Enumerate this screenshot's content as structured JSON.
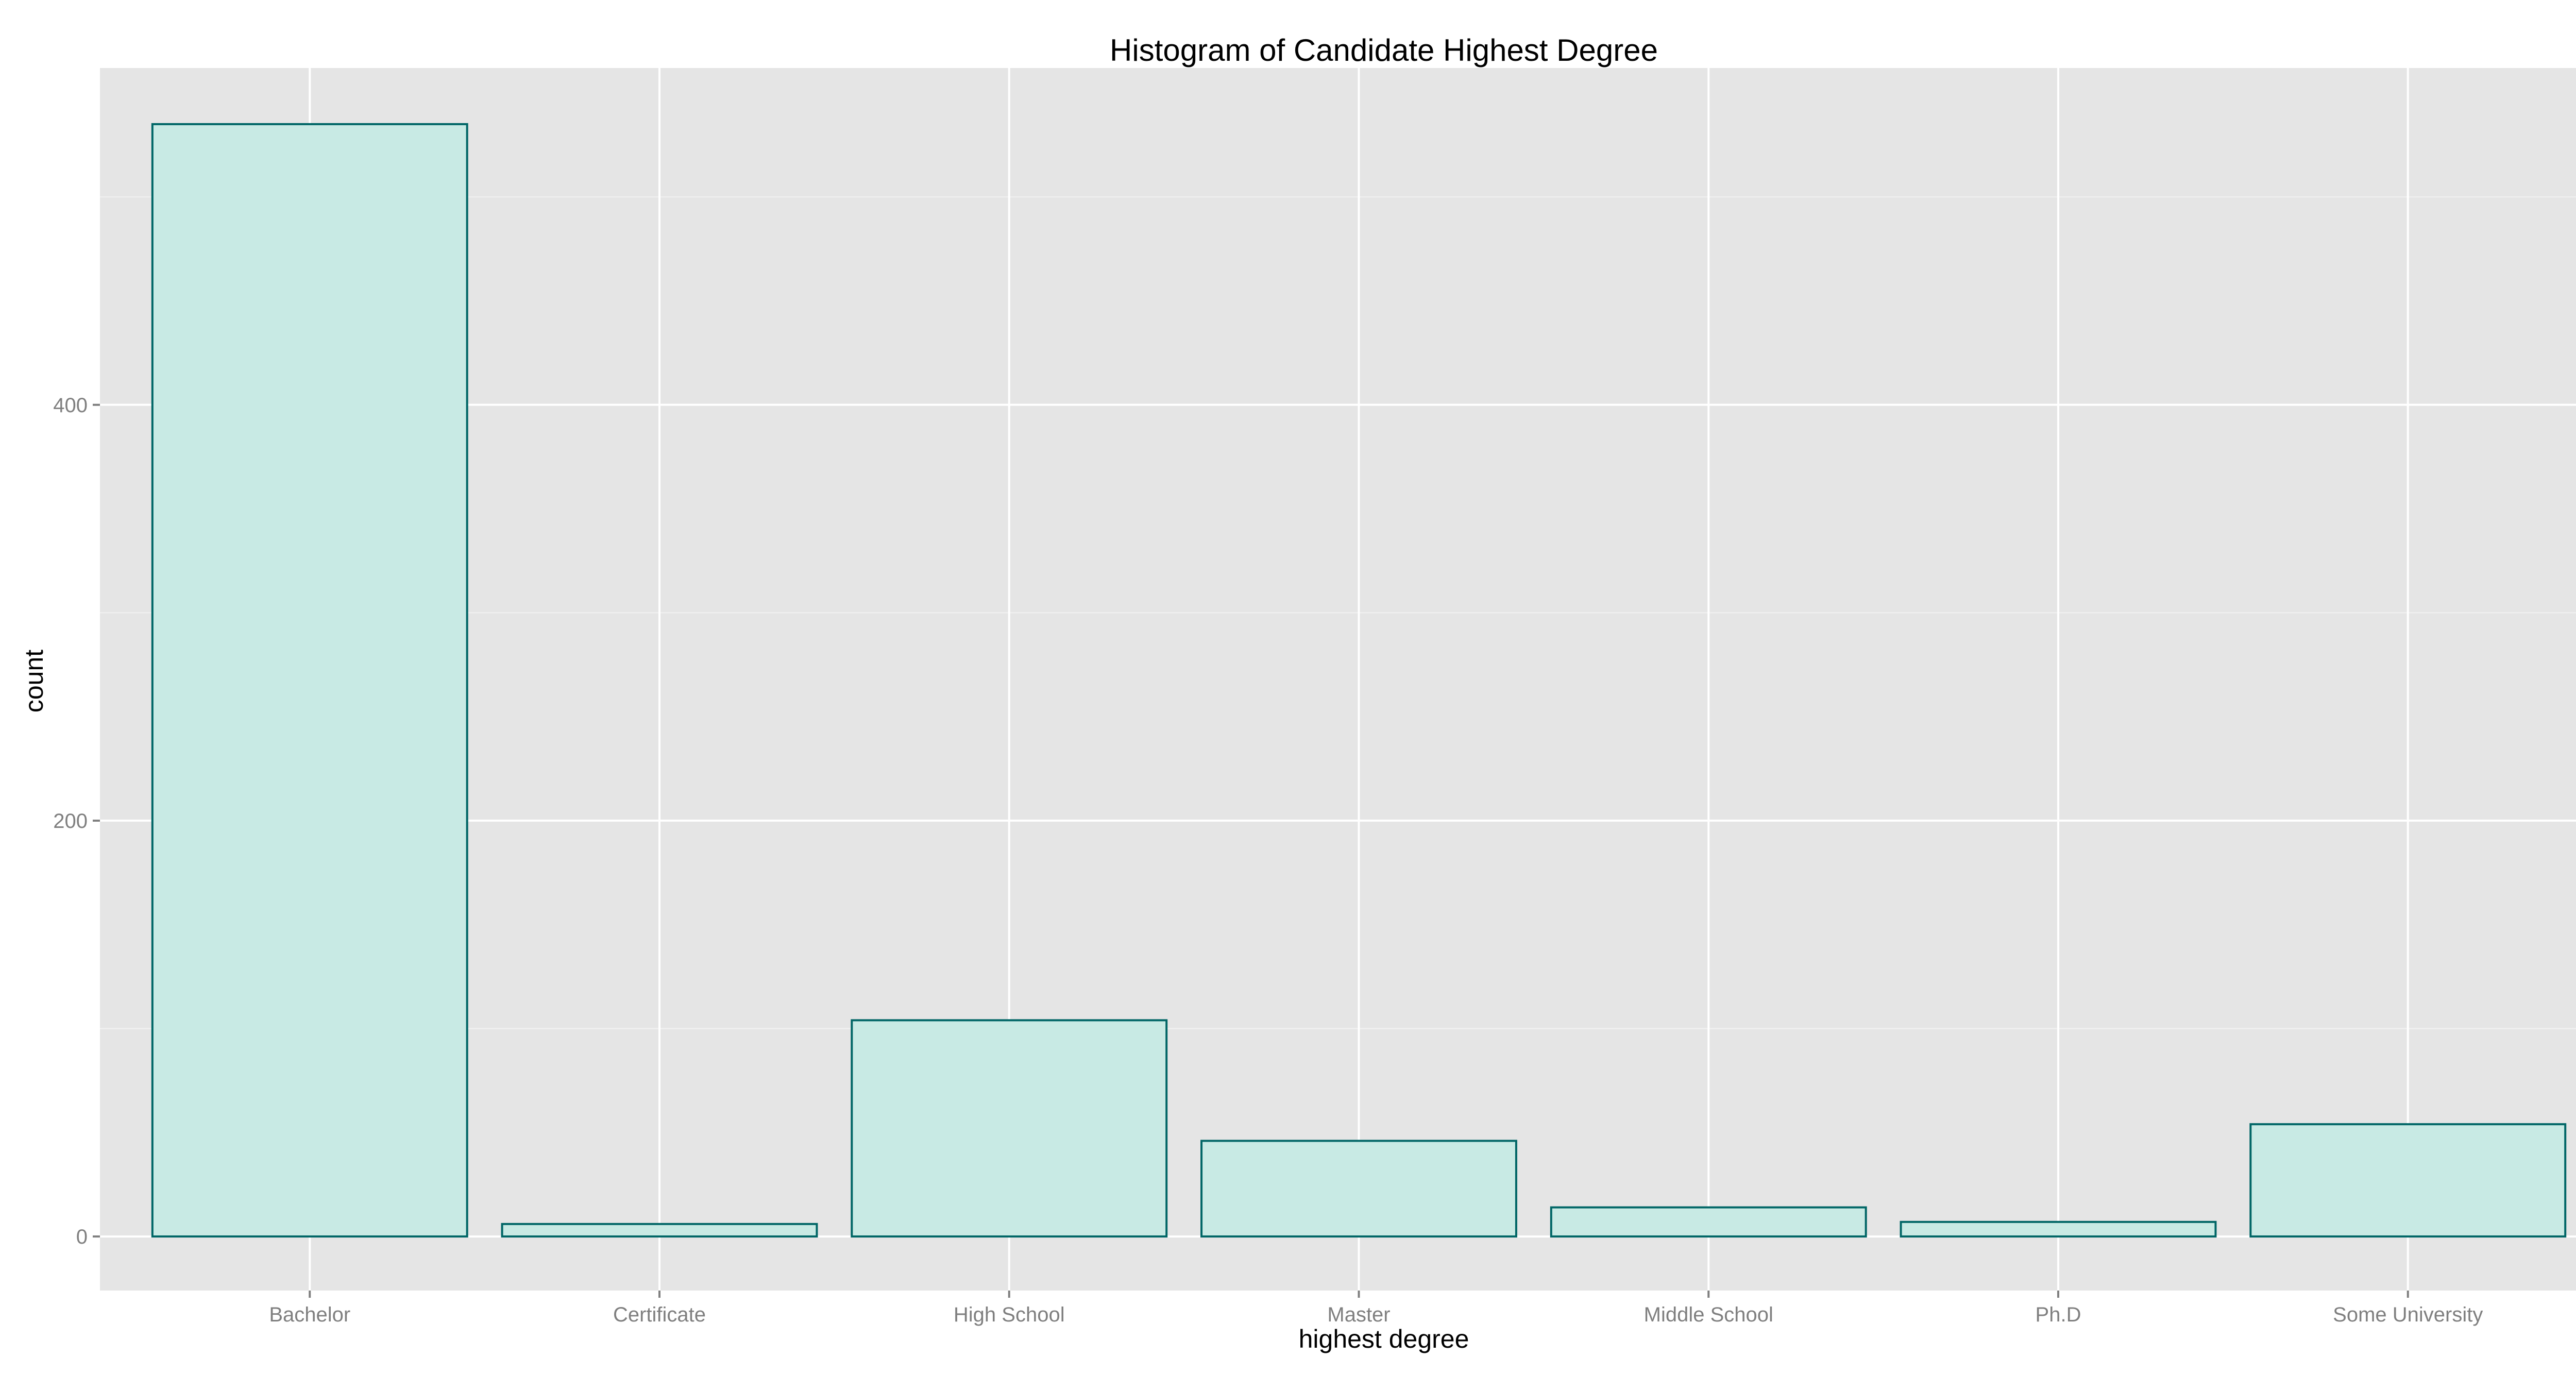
{
  "chart_data": {
    "type": "bar",
    "title": "Histogram of Candidate Highest Degree",
    "xlabel": "highest degree",
    "ylabel": "count",
    "categories": [
      "Bachelor",
      "Certificate",
      "High School",
      "Master",
      "Middle School",
      "Ph.D",
      "Some University"
    ],
    "values": [
      535,
      6,
      104,
      46,
      14,
      7,
      54
    ],
    "ylim": [
      -26,
      562
    ],
    "yticks": [
      0,
      200,
      400
    ],
    "grid": true,
    "legend": "none",
    "colors": {
      "panel_background": "#e5e5e5",
      "grid_major": "#ffffff",
      "grid_minor": "#f2f2f2",
      "bar_fill": "#c8eae4",
      "bar_stroke": "#006666",
      "tick_text": "#7f7f7f",
      "tick_mark": "#7f7f7f",
      "text": "#000000"
    }
  }
}
